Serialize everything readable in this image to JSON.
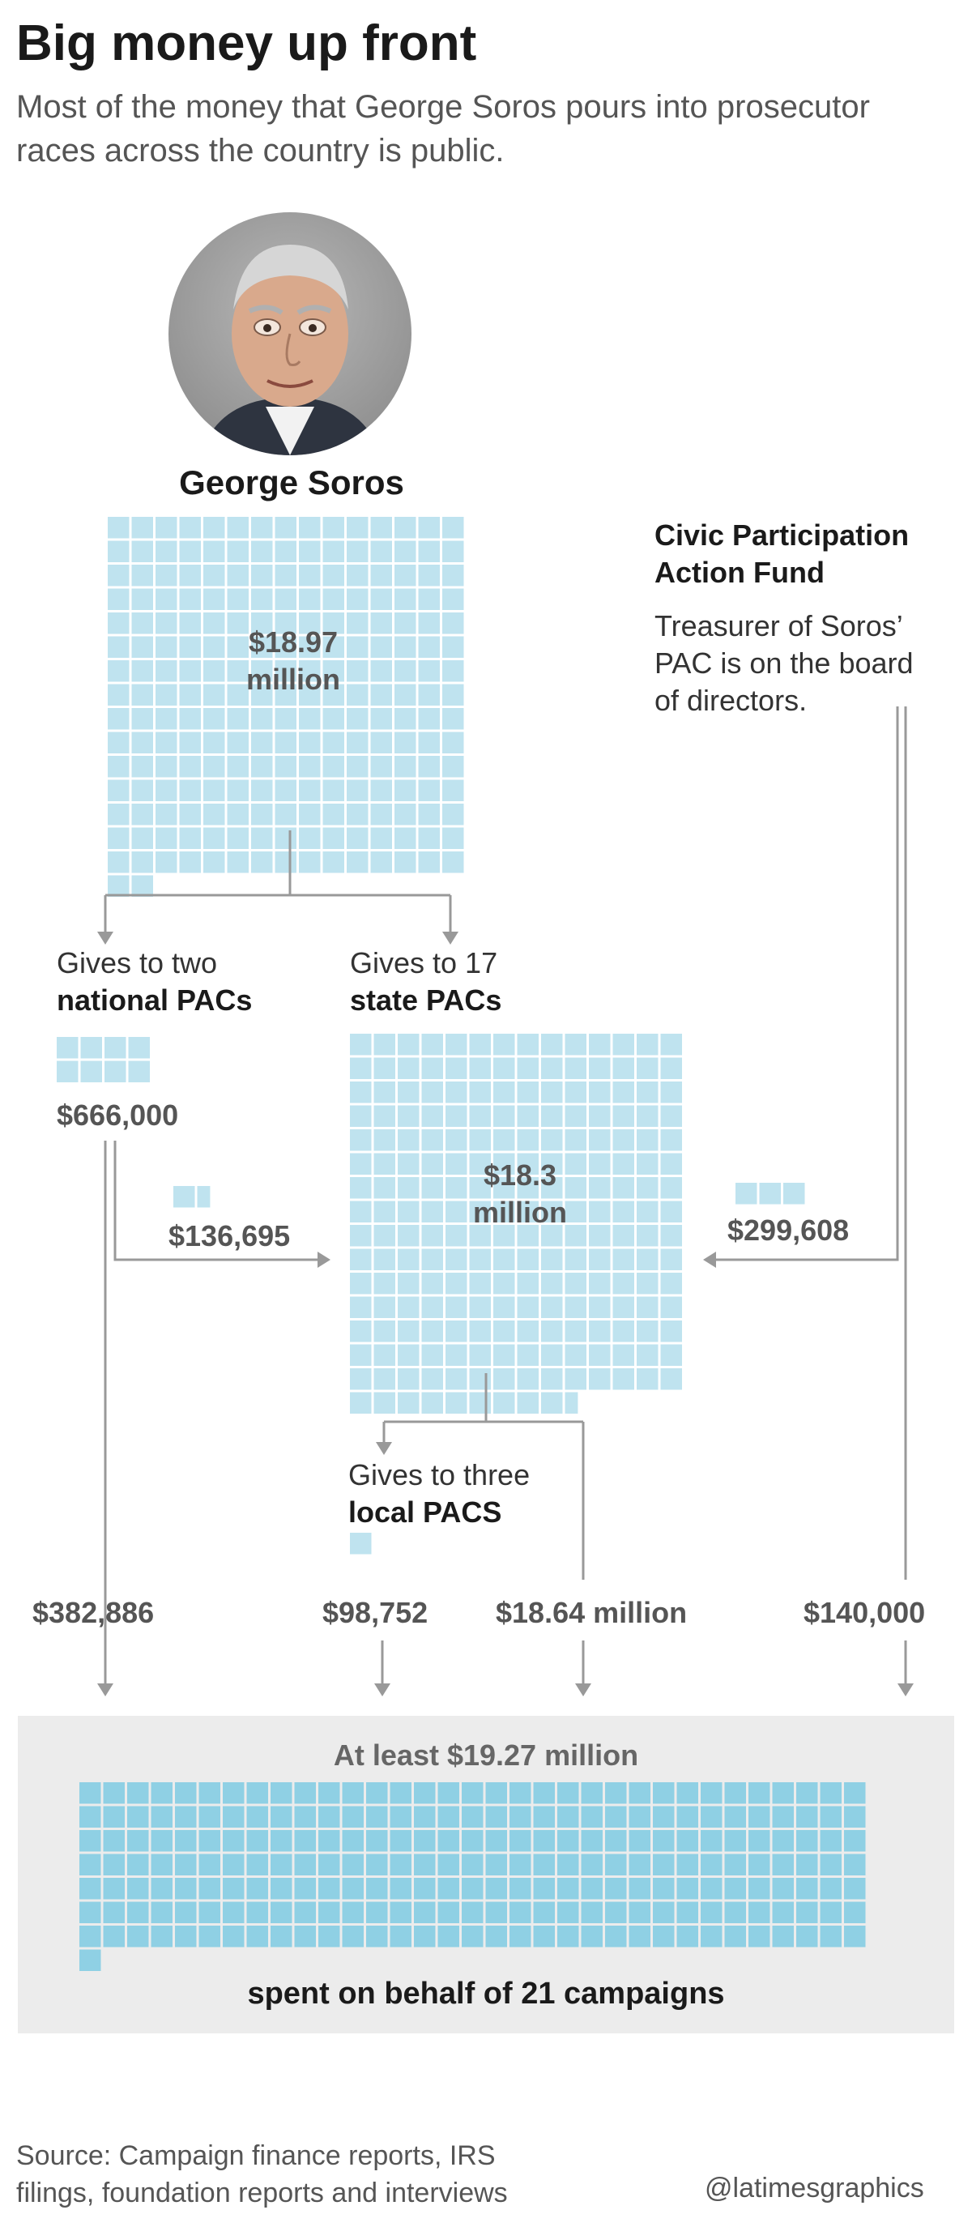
{
  "header": {
    "title": "Big money up front",
    "subtitle": "Most of the money that George Soros pours into prosecutor races across the country is public."
  },
  "soros": {
    "name": "George Soros",
    "amount_line1": "$18.97",
    "amount_line2": "million",
    "squares": 227
  },
  "national": {
    "label_line1": "Gives to two",
    "label_line2": "national PACs",
    "amount": "$666,000",
    "squares": 8
  },
  "transfer": {
    "amount": "$136,695",
    "squares": 1.6
  },
  "state": {
    "label_line1": "Gives to 17",
    "label_line2": "state PACs",
    "amount_line1": "$18.3",
    "amount_line2": "million",
    "squares": 219.6
  },
  "civic": {
    "name_line1": "Civic Participation",
    "name_line2": "Action Fund",
    "note_line1": "Treasurer of Soros’",
    "note_line2": "PAC is on the board",
    "note_line3": "of directors.",
    "amount": "$299,608",
    "squares": 3
  },
  "local": {
    "label_line1": "Gives to three",
    "label_line2": "local PACS",
    "squares": 1
  },
  "flows": {
    "national_to_campaigns": "$382,886",
    "local_to_campaigns": "$98,752",
    "state_to_campaigns": "$18.64 million",
    "civic_to_campaigns": "$140,000"
  },
  "final": {
    "title": "At least $19.27 million",
    "caption": "spent on behalf of 21 campaigns",
    "squares": 232
  },
  "footer": {
    "source_line1": "Source: Campaign finance reports, IRS",
    "source_line2": "filings, foundation reports and interviews",
    "credit": "@latimesgraphics"
  },
  "colors": {
    "square": "#bfe3ef",
    "final_square": "#8fd0e4",
    "arrow": "#999999",
    "box": "#ececec"
  }
}
